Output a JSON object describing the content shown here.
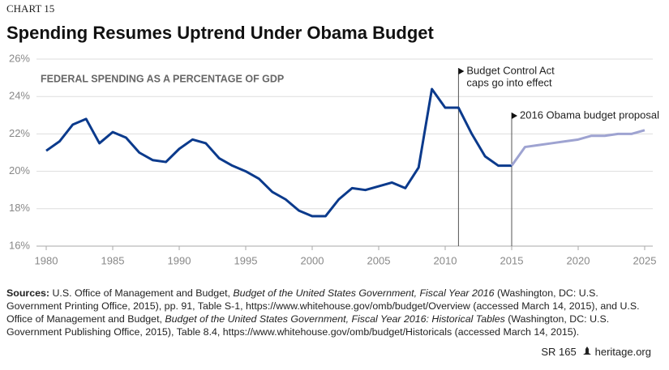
{
  "chart_data": {
    "type": "line",
    "label": "CHART 15",
    "title": "Spending Resumes Uptrend Under Obama Budget",
    "subtitle": "FEDERAL SPENDING AS A PERCENTAGE OF GDP",
    "grid": true,
    "xlim": [
      1980,
      2025
    ],
    "xticks": [
      1980,
      1985,
      1990,
      1995,
      2000,
      2005,
      2010,
      2015,
      2020,
      2025
    ],
    "ylim": [
      16,
      26
    ],
    "yticks": [
      {
        "value": 16,
        "label": "16%"
      },
      {
        "value": 18,
        "label": "18%"
      },
      {
        "value": 20,
        "label": "20%"
      },
      {
        "value": 22,
        "label": "22%"
      },
      {
        "value": 24,
        "label": "24%"
      },
      {
        "value": 26,
        "label": "26%"
      }
    ],
    "series": [
      {
        "color": "#0b3a8c",
        "x": [
          1980,
          1981,
          1982,
          1983,
          1984,
          1985,
          1986,
          1987,
          1988,
          1989,
          1990,
          1991,
          1992,
          1993,
          1994,
          1995,
          1996,
          1997,
          1998,
          1999,
          2000,
          2001,
          2002,
          2003,
          2004,
          2005,
          2006,
          2007,
          2008,
          2009,
          2010,
          2011,
          2012,
          2013,
          2014,
          2015
        ],
        "values": [
          21.1,
          21.6,
          22.5,
          22.8,
          21.5,
          22.1,
          21.8,
          21.0,
          20.6,
          20.5,
          21.2,
          21.7,
          21.5,
          20.7,
          20.3,
          20.0,
          19.6,
          18.9,
          18.5,
          17.9,
          17.6,
          17.6,
          18.5,
          19.1,
          19.0,
          19.2,
          19.4,
          19.1,
          20.2,
          24.4,
          23.4,
          23.4,
          22.0,
          20.8,
          20.3,
          20.3
        ]
      },
      {
        "color": "#9ea3d1",
        "x": [
          2015,
          2016,
          2017,
          2018,
          2019,
          2020,
          2021,
          2022,
          2023,
          2024,
          2025
        ],
        "values": [
          20.3,
          21.3,
          21.4,
          21.5,
          21.6,
          21.7,
          21.9,
          21.9,
          22.0,
          22.0,
          22.2
        ]
      }
    ],
    "annotations": [
      {
        "x": 2011,
        "text": [
          "Budget Control Act",
          "caps go into effect"
        ]
      },
      {
        "x": 2015,
        "text": [
          "2016 Obama budget proposal"
        ]
      }
    ]
  },
  "sources": {
    "label": "Sources:",
    "parts": [
      {
        "text": " U.S. Office of Management and Budget, ",
        "italic": false
      },
      {
        "text": "Budget of the United States Government, Fiscal Year 2016",
        "italic": true
      },
      {
        "text": " (Washington, DC: U.S. Government Printing Office, 2015), pp. 91, Table S-1, https://www.whitehouse.gov/omb/budget/Overview (accessed March 14, 2015), and U.S. Office of Management and Budget, ",
        "italic": false
      },
      {
        "text": "Budget of the United States Government, Fiscal Year 2016: Historical Tables",
        "italic": true
      },
      {
        "text": " (Washington, DC: U.S. Government Publishing Office, 2015), Table 8.4, https://www.whitehouse.gov/omb/budget/Historicals (accessed March 14, 2015).",
        "italic": false
      }
    ]
  },
  "footer": {
    "report": "SR 165",
    "site": "heritage.org"
  }
}
